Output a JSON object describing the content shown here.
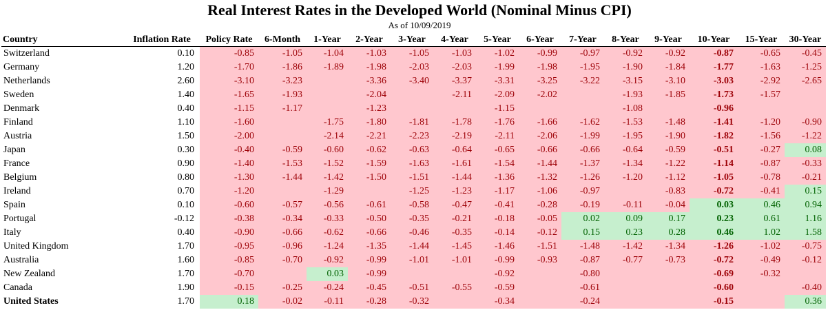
{
  "title": "Real Interest Rates in the Developed World (Nominal Minus CPI)",
  "subtitle": "As of 10/09/2019",
  "colors": {
    "negative_fill": "#ffc7ce",
    "negative_text": "#9c0006",
    "positive_fill": "#c6efce",
    "positive_text": "#006100"
  },
  "chart_data": {
    "type": "table",
    "title": "Real Interest Rates in the Developed World (Nominal Minus CPI)",
    "subtitle": "As of 10/09/2019",
    "columns": [
      "Country",
      "Inflation Rate",
      "Policy Rate",
      "6-Month",
      "1-Year",
      "2-Year",
      "3-Year",
      "4-Year",
      "5-Year",
      "6-Year",
      "7-Year",
      "8-Year",
      "9-Year",
      "10-Year",
      "15-Year",
      "30-Year"
    ],
    "bold_column": "10-Year",
    "rows": [
      {
        "country": "Switzerland",
        "inflation": "0.10",
        "values": [
          "-0.85",
          "-1.05",
          "-1.04",
          "-1.03",
          "-1.05",
          "-1.03",
          "-1.02",
          "-0.99",
          "-0.97",
          "-0.92",
          "-0.92",
          "-0.87",
          "-0.65",
          "-0.45"
        ]
      },
      {
        "country": "Germany",
        "inflation": "1.20",
        "values": [
          "-1.70",
          "-1.86",
          "-1.89",
          "-1.98",
          "-2.03",
          "-2.03",
          "-1.99",
          "-1.98",
          "-1.95",
          "-1.90",
          "-1.84",
          "-1.77",
          "-1.63",
          "-1.25"
        ]
      },
      {
        "country": "Netherlands",
        "inflation": "2.60",
        "values": [
          "-3.10",
          "-3.23",
          "",
          "-3.36",
          "-3.40",
          "-3.37",
          "-3.31",
          "-3.25",
          "-3.22",
          "-3.15",
          "-3.10",
          "-3.03",
          "-2.92",
          "-2.65"
        ]
      },
      {
        "country": "Sweden",
        "inflation": "1.40",
        "values": [
          "-1.65",
          "-1.93",
          "",
          "-2.04",
          "",
          "-2.11",
          "-2.09",
          "-2.02",
          "",
          "-1.93",
          "-1.85",
          "-1.73",
          "-1.57",
          ""
        ]
      },
      {
        "country": "Denmark",
        "inflation": "0.40",
        "values": [
          "-1.15",
          "-1.17",
          "",
          "-1.23",
          "",
          "",
          "-1.15",
          "",
          "",
          "-1.08",
          "",
          "-0.96",
          "",
          ""
        ]
      },
      {
        "country": "Finland",
        "inflation": "1.10",
        "values": [
          "-1.60",
          "",
          "-1.75",
          "-1.80",
          "-1.81",
          "-1.78",
          "-1.76",
          "-1.66",
          "-1.62",
          "-1.53",
          "-1.48",
          "-1.41",
          "-1.20",
          "-0.90"
        ]
      },
      {
        "country": "Austria",
        "inflation": "1.50",
        "values": [
          "-2.00",
          "",
          "-2.14",
          "-2.21",
          "-2.23",
          "-2.19",
          "-2.11",
          "-2.06",
          "-1.99",
          "-1.95",
          "-1.90",
          "-1.82",
          "-1.56",
          "-1.22"
        ]
      },
      {
        "country": "Japan",
        "inflation": "0.30",
        "values": [
          "-0.40",
          "-0.59",
          "-0.60",
          "-0.62",
          "-0.63",
          "-0.64",
          "-0.65",
          "-0.66",
          "-0.66",
          "-0.64",
          "-0.59",
          "-0.51",
          "-0.27",
          "0.08"
        ]
      },
      {
        "country": "France",
        "inflation": "0.90",
        "values": [
          "-1.40",
          "-1.53",
          "-1.52",
          "-1.59",
          "-1.63",
          "-1.61",
          "-1.54",
          "-1.44",
          "-1.37",
          "-1.34",
          "-1.22",
          "-1.14",
          "-0.87",
          "-0.33"
        ]
      },
      {
        "country": "Belgium",
        "inflation": "0.80",
        "values": [
          "-1.30",
          "-1.44",
          "-1.42",
          "-1.50",
          "-1.51",
          "-1.44",
          "-1.36",
          "-1.32",
          "-1.26",
          "-1.20",
          "-1.12",
          "-1.05",
          "-0.78",
          "-0.21"
        ]
      },
      {
        "country": "Ireland",
        "inflation": "0.70",
        "values": [
          "-1.20",
          "",
          "-1.29",
          "",
          "-1.25",
          "-1.23",
          "-1.17",
          "-1.06",
          "-0.97",
          "",
          "-0.83",
          "-0.72",
          "-0.41",
          "0.15"
        ]
      },
      {
        "country": "Spain",
        "inflation": "0.10",
        "values": [
          "-0.60",
          "-0.57",
          "-0.56",
          "-0.61",
          "-0.58",
          "-0.47",
          "-0.41",
          "-0.28",
          "-0.19",
          "-0.11",
          "-0.04",
          "0.03",
          "0.46",
          "0.94"
        ]
      },
      {
        "country": "Portugal",
        "inflation": "-0.12",
        "values": [
          "-0.38",
          "-0.34",
          "-0.33",
          "-0.50",
          "-0.35",
          "-0.21",
          "-0.18",
          "-0.05",
          "0.02",
          "0.09",
          "0.17",
          "0.23",
          "0.61",
          "1.16"
        ]
      },
      {
        "country": "Italy",
        "inflation": "0.40",
        "values": [
          "-0.90",
          "-0.66",
          "-0.62",
          "-0.66",
          "-0.46",
          "-0.35",
          "-0.14",
          "-0.12",
          "0.15",
          "0.23",
          "0.28",
          "0.46",
          "1.02",
          "1.58"
        ]
      },
      {
        "country": "United Kingdom",
        "inflation": "1.70",
        "values": [
          "-0.95",
          "-0.96",
          "-1.24",
          "-1.35",
          "-1.44",
          "-1.45",
          "-1.46",
          "-1.51",
          "-1.48",
          "-1.42",
          "-1.34",
          "-1.26",
          "-1.02",
          "-0.75"
        ]
      },
      {
        "country": "Australia",
        "inflation": "1.60",
        "values": [
          "-0.85",
          "-0.70",
          "-0.92",
          "-0.99",
          "-1.01",
          "-1.01",
          "-0.99",
          "-0.93",
          "-0.87",
          "-0.77",
          "-0.73",
          "-0.72",
          "-0.49",
          "-0.12"
        ]
      },
      {
        "country": "New Zealand",
        "inflation": "1.70",
        "values": [
          "-0.70",
          "",
          "0.03",
          "-0.99",
          "",
          "",
          "-0.92",
          "",
          "-0.80",
          "",
          "",
          "-0.69",
          "-0.32",
          ""
        ]
      },
      {
        "country": "Canada",
        "inflation": "1.90",
        "values": [
          "-0.15",
          "-0.25",
          "-0.24",
          "-0.45",
          "-0.51",
          "-0.55",
          "-0.59",
          "",
          "-0.61",
          "",
          "",
          "-0.60",
          "",
          "-0.40"
        ]
      },
      {
        "country": "United States",
        "inflation": "1.70",
        "bold": true,
        "values": [
          "0.18",
          "-0.02",
          "-0.11",
          "-0.28",
          "-0.32",
          "",
          "-0.34",
          "",
          "-0.24",
          "",
          "",
          "-0.15",
          "",
          "0.36"
        ]
      }
    ]
  }
}
